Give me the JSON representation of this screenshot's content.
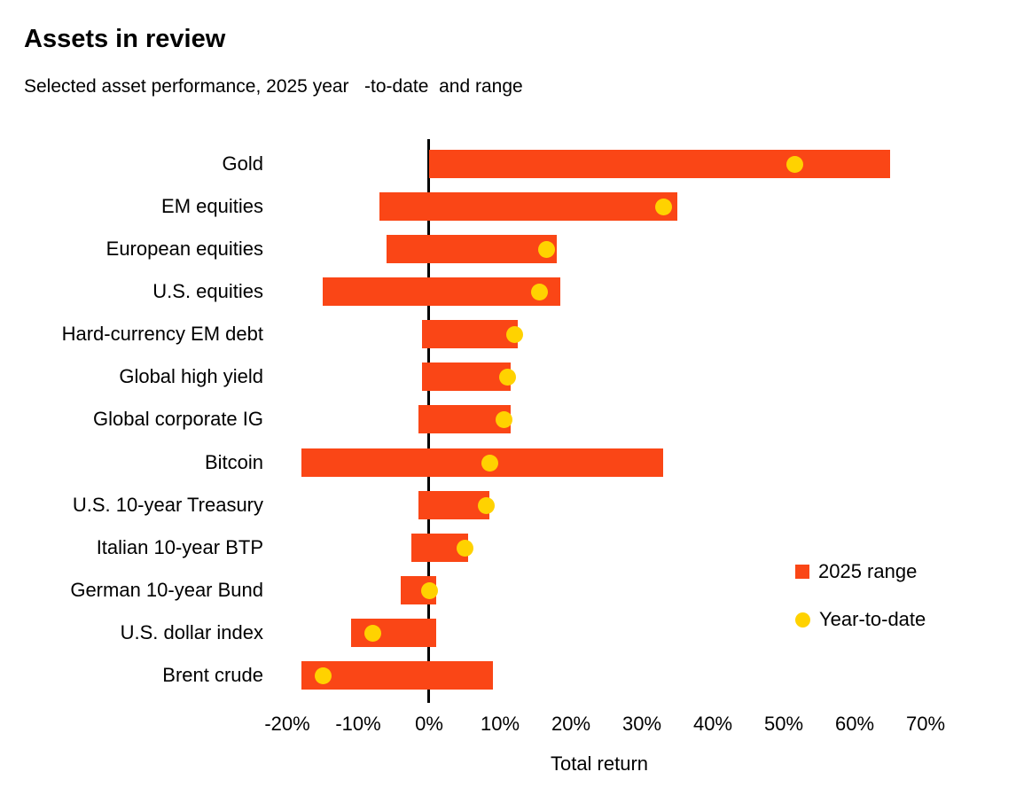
{
  "header": {
    "title": "Assets in review",
    "subtitle": "Selected asset performance, 2025 year   -to-date  and range"
  },
  "legend": {
    "range_label": "2025 range",
    "ytd_label": "Year-to-date"
  },
  "colors": {
    "range_bar": "#FA4616",
    "ytd_dot": "#FFD200",
    "axis_line": "#000000",
    "text": "#000000"
  },
  "chart_data": {
    "type": "bar",
    "subtype": "horizontal-range-with-dot",
    "title": "Assets in review",
    "subtitle": "Selected asset performance, 2025 year-to-date and range",
    "xlabel": "Total return",
    "xlim": [
      -25,
      72.5
    ],
    "ticks": [
      -20,
      -10,
      0,
      10,
      20,
      30,
      40,
      50,
      60,
      70
    ],
    "tick_labels": [
      "-20%",
      "-10%",
      "0%",
      "10%",
      "20%",
      "30%",
      "40%",
      "50%",
      "60%",
      "70%"
    ],
    "grid": false,
    "legend_position": "right-middle",
    "series": [
      {
        "name": "2025 range",
        "type": "range-bar",
        "color": "#FA4616"
      },
      {
        "name": "Year-to-date",
        "type": "dot",
        "color": "#FFD200"
      }
    ],
    "rows": [
      {
        "label": "Gold",
        "range_min": 0,
        "range_max": 65,
        "ytd": 51.5
      },
      {
        "label": "EM equities",
        "range_min": -7,
        "range_max": 35,
        "ytd": 33
      },
      {
        "label": "European equities",
        "range_min": -6,
        "range_max": 18,
        "ytd": 16.5
      },
      {
        "label": "U.S. equities",
        "range_min": -15,
        "range_max": 18.5,
        "ytd": 15.5
      },
      {
        "label": "Hard-currency EM debt",
        "range_min": -1,
        "range_max": 12.5,
        "ytd": 12
      },
      {
        "label": "Global high yield",
        "range_min": -1,
        "range_max": 11.5,
        "ytd": 11
      },
      {
        "label": "Global corporate IG",
        "range_min": -1.5,
        "range_max": 11.5,
        "ytd": 10.5
      },
      {
        "label": "Bitcoin",
        "range_min": -18,
        "range_max": 33,
        "ytd": 8.5
      },
      {
        "label": "U.S. 10-year Treasury",
        "range_min": -1.5,
        "range_max": 8.5,
        "ytd": 8
      },
      {
        "label": "Italian 10-year BTP",
        "range_min": -2.5,
        "range_max": 5.5,
        "ytd": 5
      },
      {
        "label": "German 10-year Bund",
        "range_min": -4,
        "range_max": 1,
        "ytd": 0
      },
      {
        "label": "U.S. dollar index",
        "range_min": -11,
        "range_max": 1,
        "ytd": -8
      },
      {
        "label": "Brent crude",
        "range_min": -18,
        "range_max": 9,
        "ytd": -15
      }
    ]
  }
}
